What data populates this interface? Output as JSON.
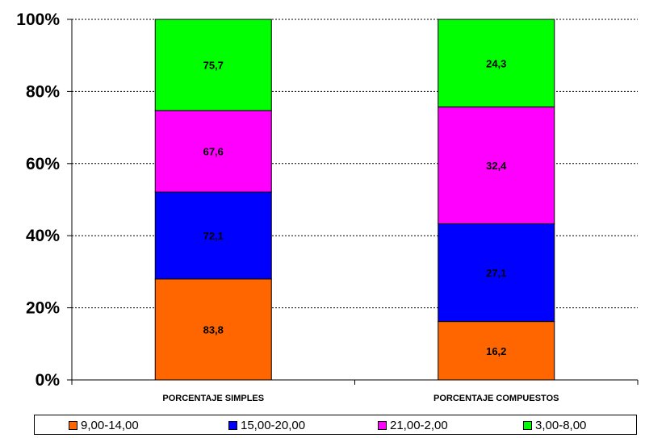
{
  "chart_data": {
    "type": "stacked-bar-100",
    "categories": [
      "PORCENTAJE SIMPLES",
      "PORCENTAJE COMPUESTOS"
    ],
    "series": [
      {
        "name": "9,00-14,00",
        "color": "#ff6600",
        "values": [
          83.8,
          16.2
        ],
        "labels": [
          "83,8",
          "16,2"
        ]
      },
      {
        "name": "15,00-20,00",
        "color": "#0000ff",
        "values": [
          72.1,
          27.1
        ],
        "labels": [
          "72,1",
          "27,1"
        ]
      },
      {
        "name": "21,00-2,00",
        "color": "#ff00ff",
        "values": [
          67.6,
          32.4
        ],
        "labels": [
          "67,6",
          "32,4"
        ]
      },
      {
        "name": "3,00-8,00",
        "color": "#00ff00",
        "values": [
          75.7,
          24.3
        ],
        "labels": [
          "75,7",
          "24,3"
        ]
      }
    ],
    "ylim": [
      0,
      100
    ],
    "yticks": [
      "0%",
      "20%",
      "40%",
      "60%",
      "80%",
      "100%"
    ],
    "grid": true,
    "legend_position": "bottom"
  }
}
